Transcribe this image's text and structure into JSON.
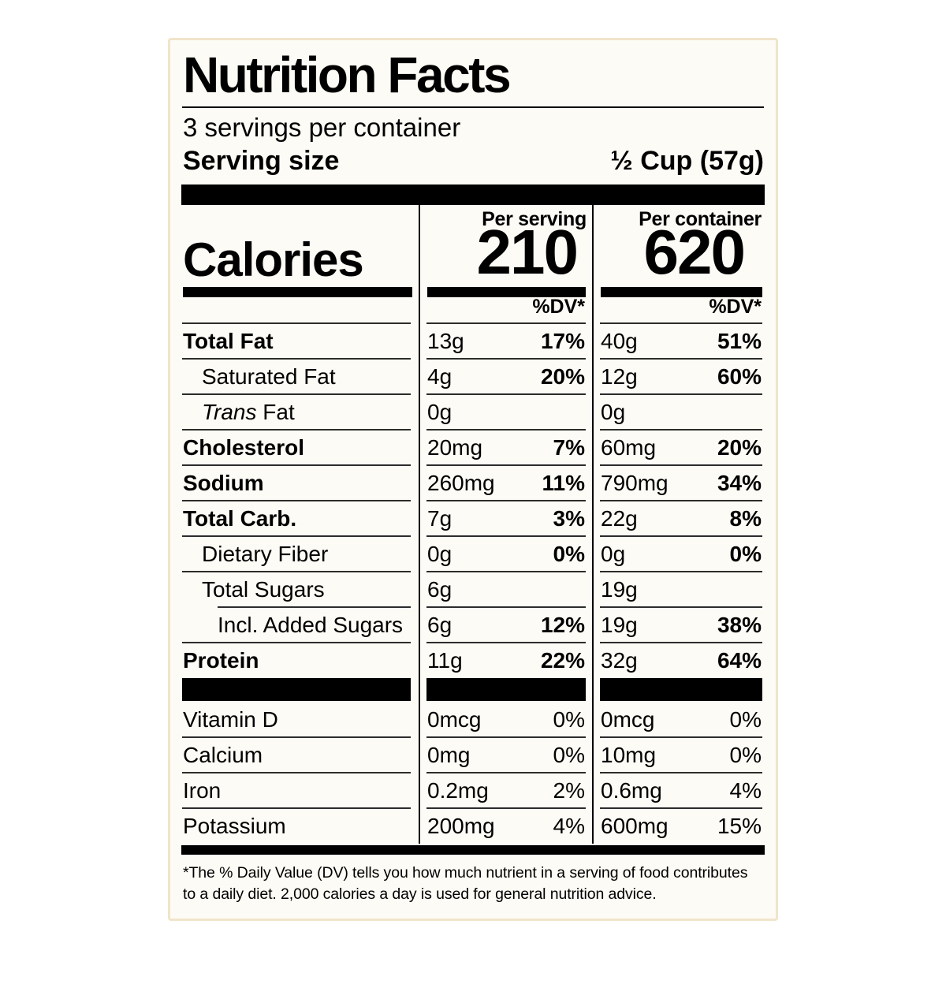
{
  "label": {
    "title": "Nutrition Facts",
    "servings_per_container": "3 servings per container",
    "serving_size": {
      "label": "Serving size",
      "value": "½ Cup (57g)"
    },
    "calories": {
      "label": "Calories",
      "serving": {
        "header": "Per serving",
        "value": "210",
        "dv_label": "%DV*"
      },
      "container": {
        "header": "Per container",
        "value": "620",
        "dv_label": "%DV*"
      }
    },
    "nutrients": [
      {
        "name": "Total Fat",
        "style": "bold",
        "indent": 0,
        "serving_amount": "13g",
        "serving_dv": "17%",
        "container_amount": "40g",
        "container_dv": "51%"
      },
      {
        "name": "Saturated Fat",
        "style": "regular",
        "indent": 1,
        "serving_amount": "4g",
        "serving_dv": "20%",
        "container_amount": "12g",
        "container_dv": "60%"
      },
      {
        "name": "Fat",
        "name_italic": "Trans",
        "style": "regular",
        "indent": 1,
        "serving_amount": "0g",
        "serving_dv": "",
        "container_amount": "0g",
        "container_dv": ""
      },
      {
        "name": "Cholesterol",
        "style": "bold",
        "indent": 0,
        "serving_amount": "20mg",
        "serving_dv": "7%",
        "container_amount": "60mg",
        "container_dv": "20%"
      },
      {
        "name": "Sodium",
        "style": "bold",
        "indent": 0,
        "serving_amount": "260mg",
        "serving_dv": "11%",
        "container_amount": "790mg",
        "container_dv": "34%"
      },
      {
        "name": "Total Carb.",
        "style": "bold",
        "indent": 0,
        "serving_amount": "7g",
        "serving_dv": "3%",
        "container_amount": "22g",
        "container_dv": "8%"
      },
      {
        "name": "Dietary Fiber",
        "style": "regular",
        "indent": 1,
        "serving_amount": "0g",
        "serving_dv": "0%",
        "container_amount": "0g",
        "container_dv": "0%"
      },
      {
        "name": "Total Sugars",
        "style": "regular",
        "indent": 1,
        "serving_amount": "6g",
        "serving_dv": "",
        "container_amount": "19g",
        "container_dv": ""
      },
      {
        "name": "Incl. Added Sugars",
        "style": "regular",
        "indent": 2,
        "serving_amount": "6g",
        "serving_dv": "12%",
        "container_amount": "19g",
        "container_dv": "38%"
      },
      {
        "name": "Protein",
        "style": "bold",
        "indent": 0,
        "serving_amount": "11g",
        "serving_dv": "22%",
        "container_amount": "32g",
        "container_dv": "64%"
      }
    ],
    "micronutrients": [
      {
        "name": "Vitamin D",
        "serving_amount": "0mcg",
        "serving_dv": "0%",
        "container_amount": "0mcg",
        "container_dv": "0%"
      },
      {
        "name": "Calcium",
        "serving_amount": "0mg",
        "serving_dv": "0%",
        "container_amount": "10mg",
        "container_dv": "0%"
      },
      {
        "name": "Iron",
        "serving_amount": "0.2mg",
        "serving_dv": "2%",
        "container_amount": "0.6mg",
        "container_dv": "4%"
      },
      {
        "name": "Potassium",
        "serving_amount": "200mg",
        "serving_dv": "4%",
        "container_amount": "600mg",
        "container_dv": "15%"
      }
    ],
    "footnote": "*The % Daily Value (DV) tells you how much nutrient in a serving of food contributes to a daily diet. 2,000 calories a day is used for general nutrition advice.",
    "colors": {
      "ink": "#000000",
      "background": "#fdfbf5",
      "border": "#f0e4cb"
    }
  }
}
